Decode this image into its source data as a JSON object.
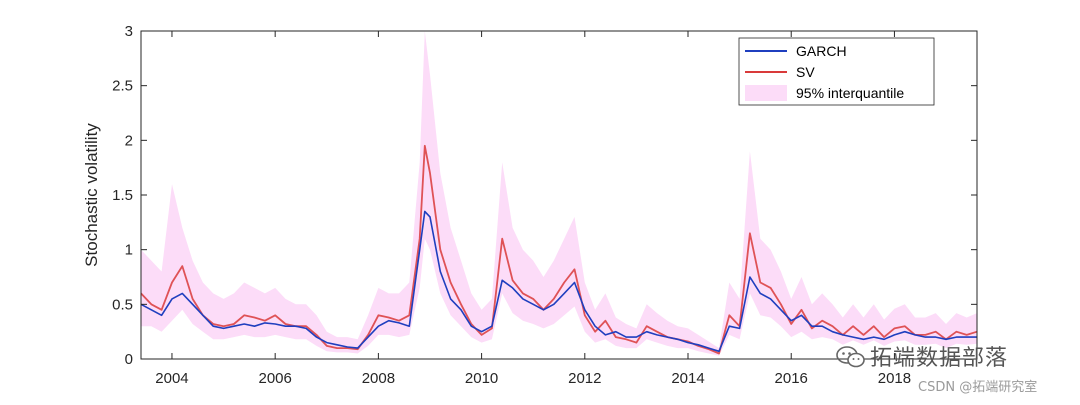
{
  "chart_data": {
    "type": "line",
    "xlabel": "",
    "ylabel": "Stochastic volatility",
    "xlim": [
      2003.4,
      2019.6
    ],
    "ylim": [
      0,
      3
    ],
    "x_ticks": [
      2004,
      2006,
      2008,
      2010,
      2012,
      2014,
      2016,
      2018
    ],
    "y_ticks": [
      0,
      0.5,
      1,
      1.5,
      2,
      2.5,
      3
    ],
    "y_tick_labels": [
      "0",
      "0.5",
      "1",
      "1.5",
      "2",
      "2.5",
      "3"
    ],
    "grid": false,
    "legend_position": "top-right",
    "x": [
      2003.4,
      2003.6,
      2003.8,
      2004.0,
      2004.2,
      2004.4,
      2004.6,
      2004.8,
      2005.0,
      2005.2,
      2005.4,
      2005.6,
      2005.8,
      2006.0,
      2006.2,
      2006.4,
      2006.6,
      2006.8,
      2007.0,
      2007.2,
      2007.4,
      2007.6,
      2007.8,
      2008.0,
      2008.2,
      2008.4,
      2008.6,
      2008.8,
      2008.9,
      2009.0,
      2009.2,
      2009.4,
      2009.6,
      2009.8,
      2010.0,
      2010.2,
      2010.4,
      2010.6,
      2010.8,
      2011.0,
      2011.2,
      2011.4,
      2011.6,
      2011.8,
      2012.0,
      2012.2,
      2012.4,
      2012.6,
      2012.8,
      2013.0,
      2013.2,
      2013.4,
      2013.6,
      2013.8,
      2014.0,
      2014.2,
      2014.4,
      2014.6,
      2014.8,
      2015.0,
      2015.2,
      2015.4,
      2015.6,
      2015.8,
      2016.0,
      2016.2,
      2016.4,
      2016.6,
      2016.8,
      2017.0,
      2017.2,
      2017.4,
      2017.6,
      2017.8,
      2018.0,
      2018.2,
      2018.4,
      2018.6,
      2018.8,
      2019.0,
      2019.2,
      2019.4,
      2019.6
    ],
    "series": [
      {
        "name": "GARCH",
        "color": "#1f3fbf",
        "values": [
          0.5,
          0.45,
          0.4,
          0.55,
          0.6,
          0.5,
          0.4,
          0.3,
          0.28,
          0.3,
          0.32,
          0.3,
          0.33,
          0.32,
          0.3,
          0.3,
          0.28,
          0.2,
          0.15,
          0.13,
          0.11,
          0.1,
          0.2,
          0.3,
          0.35,
          0.33,
          0.3,
          1.0,
          1.35,
          1.3,
          0.8,
          0.55,
          0.45,
          0.3,
          0.25,
          0.3,
          0.72,
          0.65,
          0.55,
          0.5,
          0.45,
          0.5,
          0.6,
          0.7,
          0.45,
          0.3,
          0.22,
          0.25,
          0.2,
          0.2,
          0.25,
          0.22,
          0.2,
          0.18,
          0.15,
          0.13,
          0.1,
          0.07,
          0.3,
          0.28,
          0.75,
          0.6,
          0.55,
          0.45,
          0.35,
          0.4,
          0.3,
          0.3,
          0.25,
          0.22,
          0.2,
          0.18,
          0.2,
          0.18,
          0.22,
          0.25,
          0.22,
          0.2,
          0.2,
          0.18,
          0.2,
          0.2,
          0.2
        ]
      },
      {
        "name": "SV",
        "color": "#d93a3a",
        "values": [
          0.6,
          0.5,
          0.45,
          0.7,
          0.85,
          0.55,
          0.4,
          0.32,
          0.3,
          0.32,
          0.4,
          0.38,
          0.35,
          0.4,
          0.32,
          0.3,
          0.3,
          0.22,
          0.12,
          0.1,
          0.1,
          0.09,
          0.22,
          0.4,
          0.38,
          0.35,
          0.4,
          1.1,
          1.95,
          1.7,
          1.0,
          0.7,
          0.5,
          0.32,
          0.22,
          0.28,
          1.1,
          0.72,
          0.6,
          0.55,
          0.45,
          0.55,
          0.7,
          0.82,
          0.4,
          0.25,
          0.35,
          0.2,
          0.18,
          0.15,
          0.3,
          0.25,
          0.2,
          0.18,
          0.16,
          0.12,
          0.09,
          0.05,
          0.4,
          0.3,
          1.15,
          0.7,
          0.65,
          0.5,
          0.32,
          0.45,
          0.28,
          0.35,
          0.3,
          0.22,
          0.3,
          0.22,
          0.3,
          0.2,
          0.28,
          0.3,
          0.22,
          0.22,
          0.25,
          0.18,
          0.25,
          0.22,
          0.25
        ]
      }
    ],
    "band": {
      "name": "95% interquantile",
      "color": "#fcdcf8",
      "lower": [
        0.3,
        0.3,
        0.25,
        0.35,
        0.45,
        0.32,
        0.25,
        0.18,
        0.18,
        0.2,
        0.22,
        0.2,
        0.2,
        0.22,
        0.2,
        0.18,
        0.18,
        0.12,
        0.07,
        0.06,
        0.06,
        0.05,
        0.12,
        0.22,
        0.22,
        0.2,
        0.22,
        0.65,
        1.1,
        1.0,
        0.6,
        0.4,
        0.3,
        0.2,
        0.15,
        0.18,
        0.6,
        0.42,
        0.35,
        0.32,
        0.28,
        0.32,
        0.4,
        0.48,
        0.25,
        0.15,
        0.18,
        0.12,
        0.1,
        0.1,
        0.18,
        0.15,
        0.12,
        0.1,
        0.1,
        0.07,
        0.05,
        0.03,
        0.22,
        0.18,
        0.6,
        0.4,
        0.38,
        0.3,
        0.2,
        0.25,
        0.18,
        0.2,
        0.18,
        0.13,
        0.17,
        0.13,
        0.17,
        0.12,
        0.16,
        0.17,
        0.13,
        0.13,
        0.14,
        0.1,
        0.14,
        0.13,
        0.14
      ],
      "upper": [
        1.0,
        0.9,
        0.8,
        1.6,
        1.2,
        0.9,
        0.7,
        0.6,
        0.55,
        0.6,
        0.7,
        0.65,
        0.6,
        0.65,
        0.55,
        0.5,
        0.5,
        0.4,
        0.25,
        0.2,
        0.2,
        0.18,
        0.4,
        0.65,
        0.6,
        0.6,
        0.7,
        1.8,
        3.0,
        2.6,
        1.7,
        1.2,
        0.9,
        0.6,
        0.45,
        0.55,
        1.8,
        1.2,
        1.0,
        0.9,
        0.75,
        0.9,
        1.1,
        1.3,
        0.7,
        0.45,
        0.6,
        0.38,
        0.32,
        0.28,
        0.5,
        0.42,
        0.35,
        0.3,
        0.28,
        0.22,
        0.16,
        0.1,
        0.7,
        0.55,
        1.9,
        1.1,
        1.0,
        0.8,
        0.55,
        0.75,
        0.5,
        0.6,
        0.5,
        0.38,
        0.5,
        0.38,
        0.5,
        0.36,
        0.46,
        0.5,
        0.38,
        0.38,
        0.42,
        0.32,
        0.42,
        0.38,
        0.42
      ]
    }
  },
  "watermark": {
    "main": "拓端数据部落",
    "sub": "CSDN @拓端研究室"
  }
}
